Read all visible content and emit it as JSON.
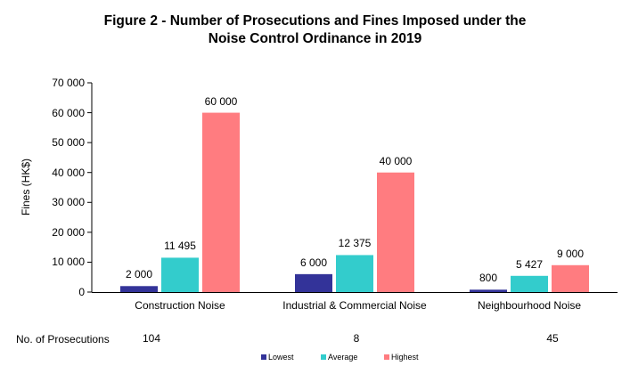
{
  "chart_data": {
    "type": "bar",
    "title": "Figure 2 - Number of Prosecutions and Fines Imposed under the Noise Control Ordinance in 2019",
    "title_lines": [
      "Figure 2 - Number of Prosecutions and Fines Imposed under the",
      "Noise Control Ordinance in 2019"
    ],
    "xlabel": "",
    "ylabel": "Fines (HK$)",
    "ylim": [
      0,
      70000
    ],
    "yticks": [
      0,
      10000,
      20000,
      30000,
      40000,
      50000,
      60000,
      70000
    ],
    "ytick_labels": [
      "0",
      "10 000",
      "20 000",
      "30 000",
      "40 000",
      "50 000",
      "60 000",
      "70 000"
    ],
    "grid": false,
    "legend_position": "bottom",
    "categories": [
      "Construction Noise",
      "Industrial & Commercial Noise",
      "Neighbourhood Noise"
    ],
    "series": [
      {
        "name": "Lowest",
        "color": "#333399",
        "values": [
          2000,
          6000,
          800
        ],
        "labels": [
          "2 000",
          "6 000",
          "800"
        ]
      },
      {
        "name": "Average",
        "color": "#33CCCC",
        "values": [
          11495,
          12375,
          5427
        ],
        "labels": [
          "11 495",
          "12 375",
          "5 427"
        ]
      },
      {
        "name": "Highest",
        "color": "#FF7C80",
        "values": [
          60000,
          40000,
          9000
        ],
        "labels": [
          "60 000",
          "40 000",
          "9 000"
        ]
      }
    ],
    "prosecutions": {
      "label": "No. of Prosecutions",
      "values": [
        "104",
        "8",
        "45"
      ]
    }
  }
}
